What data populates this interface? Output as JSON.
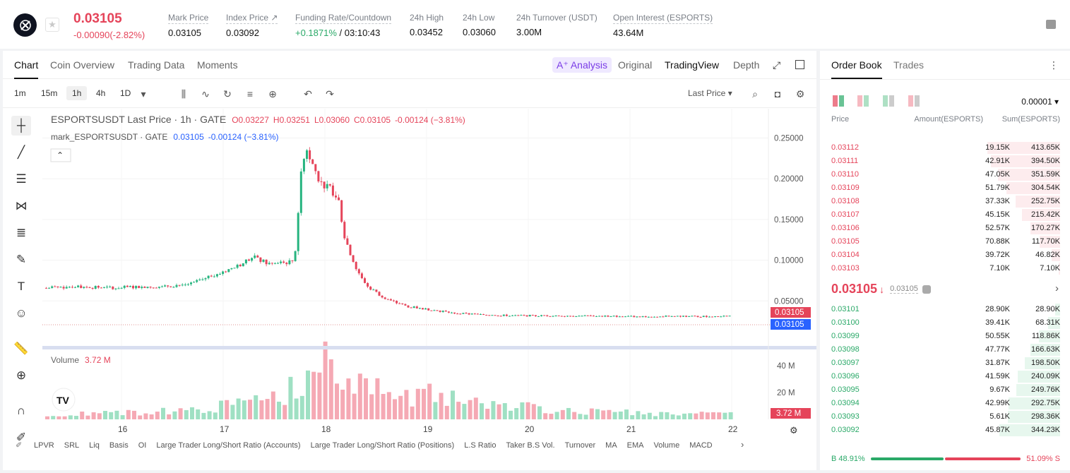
{
  "ticker": {
    "price": "0.03105",
    "change": "-0.00090(-2.82%)"
  },
  "stats": [
    {
      "label": "Mark Price",
      "value": "0.03105"
    },
    {
      "label": "Index Price ↗",
      "value": "0.03092"
    },
    {
      "label": "Funding Rate/Countdown",
      "value": "+0.1871%",
      "value2": "/ 03:10:43"
    },
    {
      "label": "24h High",
      "value": "0.03452"
    },
    {
      "label": "24h Low",
      "value": "0.03060"
    },
    {
      "label": "24h Turnover (USDT)",
      "value": "3.00M"
    },
    {
      "label": "Open Interest (ESPORTS)",
      "value": "43.64M"
    }
  ],
  "chart_tabs": [
    "Chart",
    "Coin Overview",
    "Trading Data",
    "Moments"
  ],
  "view_tabs": {
    "analysis": "A⁺ Analysis",
    "original": "Original",
    "tradingview": "TradingView",
    "depth": "Depth"
  },
  "intervals": [
    "1m",
    "15m",
    "1h",
    "4h",
    "1D"
  ],
  "last_price_select": "Last Price",
  "legend": {
    "line1_a": "ESPORTSUSDT Last Price · 1h · GATE",
    "o": "O0.03227",
    "h": "H0.03251",
    "l": "L0.03060",
    "c": "C0.03105",
    "chg": "-0.00124 (−3.81%)",
    "line2_a": "mark_ESPORTSUSDT · GATE",
    "line2_b": "0.03105",
    "line2_c": "-0.00124 (−3.81%)"
  },
  "volume": {
    "label": "Volume",
    "value": "3.72 M",
    "axis": [
      "40 M",
      "20 M"
    ],
    "tag": "3.72 M"
  },
  "price_axis": [
    "0.25000",
    "0.20000",
    "0.15000",
    "0.10000",
    "0.05000"
  ],
  "price_tag_last": "0.03105",
  "price_tag_mark": "0.03105",
  "x_axis": [
    "16",
    "17",
    "18",
    "19",
    "20",
    "21",
    "22"
  ],
  "indicators": [
    "LPVR",
    "SRL",
    "Liq",
    "Basis",
    "OI",
    "Large Trader Long/Short Ratio (Accounts)",
    "Large Trader Long/Short Ratio (Positions)",
    "L.S Ratio",
    "Taker B.S Vol.",
    "Turnover",
    "MA",
    "EMA",
    "Volume",
    "MACD"
  ],
  "orderbook": {
    "tabs": [
      "Order Book",
      "Trades"
    ],
    "precision": "0.00001",
    "headers": [
      "Price",
      "Amount(ESPORTS)",
      "Sum(ESPORTS)"
    ],
    "asks": [
      {
        "price": "0.03112",
        "amount": "19.15K",
        "sum": "413.65K",
        "depth": 0.413
      },
      {
        "price": "0.03111",
        "amount": "42.91K",
        "sum": "394.50K",
        "depth": 0.394
      },
      {
        "price": "0.03110",
        "amount": "47.05K",
        "sum": "351.59K",
        "depth": 0.352
      },
      {
        "price": "0.03109",
        "amount": "51.79K",
        "sum": "304.54K",
        "depth": 0.305
      },
      {
        "price": "0.03108",
        "amount": "37.33K",
        "sum": "252.75K",
        "depth": 0.253
      },
      {
        "price": "0.03107",
        "amount": "45.15K",
        "sum": "215.42K",
        "depth": 0.215
      },
      {
        "price": "0.03106",
        "amount": "52.57K",
        "sum": "170.27K",
        "depth": 0.17
      },
      {
        "price": "0.03105",
        "amount": "70.88K",
        "sum": "117.70K",
        "depth": 0.118
      },
      {
        "price": "0.03104",
        "amount": "39.72K",
        "sum": "46.82K",
        "depth": 0.047
      },
      {
        "price": "0.03103",
        "amount": "7.10K",
        "sum": "7.10K",
        "depth": 0.007
      }
    ],
    "mid": {
      "price": "0.03105",
      "arrow": "↓",
      "mark": "0.03105"
    },
    "bids": [
      {
        "price": "0.03101",
        "amount": "28.90K",
        "sum": "28.90K",
        "depth": 0.029
      },
      {
        "price": "0.03100",
        "amount": "39.41K",
        "sum": "68.31K",
        "depth": 0.068
      },
      {
        "price": "0.03099",
        "amount": "50.55K",
        "sum": "118.86K",
        "depth": 0.119
      },
      {
        "price": "0.03098",
        "amount": "47.77K",
        "sum": "166.63K",
        "depth": 0.167
      },
      {
        "price": "0.03097",
        "amount": "31.87K",
        "sum": "198.50K",
        "depth": 0.199
      },
      {
        "price": "0.03096",
        "amount": "41.59K",
        "sum": "240.09K",
        "depth": 0.24
      },
      {
        "price": "0.03095",
        "amount": "9.67K",
        "sum": "249.76K",
        "depth": 0.25
      },
      {
        "price": "0.03094",
        "amount": "42.99K",
        "sum": "292.75K",
        "depth": 0.293
      },
      {
        "price": "0.03093",
        "amount": "5.61K",
        "sum": "298.36K",
        "depth": 0.298
      },
      {
        "price": "0.03092",
        "amount": "45.87K",
        "sum": "344.23K",
        "depth": 0.344
      }
    ],
    "ratio": {
      "buy_label": "B",
      "buy": "48.91%",
      "sell": "51.09%",
      "sell_label": "S",
      "buy_frac": 0.4891
    }
  },
  "chart_data": {
    "type": "candlestick",
    "symbol": "ESPORTSUSDT",
    "ylim": [
      0,
      0.26
    ],
    "price_path": [
      [
        0,
        0.066
      ],
      [
        0.5,
        0.068
      ],
      [
        1,
        0.066
      ],
      [
        1.5,
        0.067
      ],
      [
        2,
        0.068
      ],
      [
        2.5,
        0.071
      ],
      [
        2.8,
        0.081
      ],
      [
        3,
        0.085
      ],
      [
        3.3,
        0.094
      ],
      [
        3.55,
        0.104
      ],
      [
        3.8,
        0.095
      ],
      [
        4.1,
        0.097
      ],
      [
        4.25,
        0.1
      ],
      [
        4.3,
        0.145
      ],
      [
        4.35,
        0.2
      ],
      [
        4.45,
        0.24
      ],
      [
        4.55,
        0.22
      ],
      [
        4.7,
        0.195
      ],
      [
        4.9,
        0.185
      ],
      [
        5.0,
        0.175
      ],
      [
        5.1,
        0.13
      ],
      [
        5.3,
        0.09
      ],
      [
        5.5,
        0.068
      ],
      [
        5.7,
        0.058
      ],
      [
        5.9,
        0.05
      ],
      [
        6.2,
        0.043
      ],
      [
        6.6,
        0.039
      ],
      [
        7.0,
        0.035
      ],
      [
        7.5,
        0.033
      ],
      [
        8,
        0.032
      ],
      [
        9,
        0.032
      ],
      [
        10,
        0.031
      ],
      [
        11,
        0.031
      ],
      [
        11.7,
        0.031
      ]
    ],
    "volume_path": [
      [
        0,
        3
      ],
      [
        1,
        5
      ],
      [
        2,
        6
      ],
      [
        2.5,
        8
      ],
      [
        3,
        10
      ],
      [
        3.5,
        12
      ],
      [
        4,
        15
      ],
      [
        4.3,
        30
      ],
      [
        4.5,
        35
      ],
      [
        4.7,
        38
      ],
      [
        5.0,
        42
      ],
      [
        5.3,
        30
      ],
      [
        5.6,
        25
      ],
      [
        6,
        20
      ],
      [
        6.5,
        18
      ],
      [
        7,
        15
      ],
      [
        7.5,
        12
      ],
      [
        8,
        10
      ],
      [
        8.5,
        7
      ],
      [
        9,
        6
      ],
      [
        10,
        5
      ],
      [
        11,
        4
      ],
      [
        11.7,
        3.72
      ]
    ],
    "volume_ylim": [
      0,
      50
    ]
  }
}
